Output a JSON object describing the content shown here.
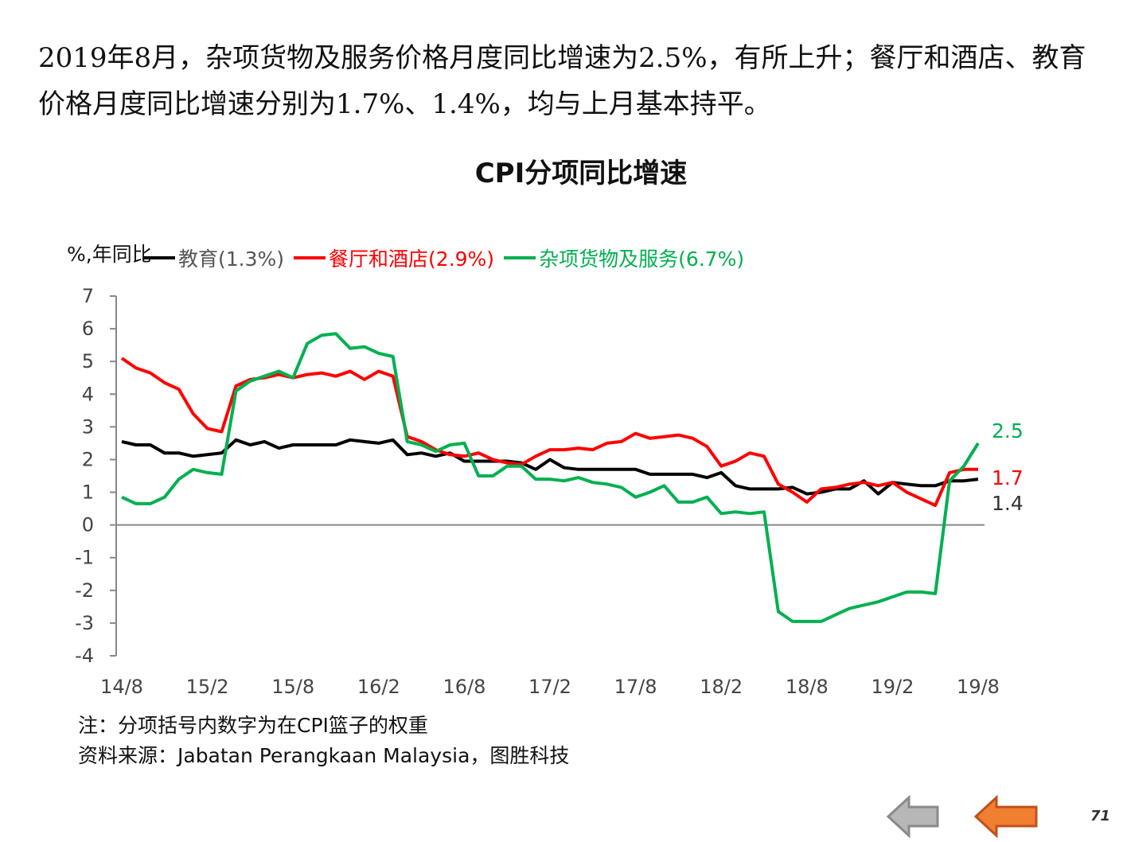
{
  "intro_text": "2019年8月，杂项货物及服务价格月度同比增速为2.5%，有所上升；餐厅和酒店、教育价格月度同比增速分别为1.7%、1.4%，均与上月基本持平。",
  "notes": [
    "注：分项括号内数字为在CPI篮子的权重",
    "资料来源：Jabatan Perangkaan Malaysia，图胜科技"
  ],
  "page_number": "71",
  "nav": {
    "prev_icon": "left-arrow-gray-icon",
    "back_icon": "left-arrow-orange-icon"
  },
  "chart_data": {
    "type": "line",
    "title": "CPI分项同比增速",
    "ylabel": "%,年同比",
    "xlabel": "",
    "ylim": [
      -4,
      7
    ],
    "yticks": [
      "7",
      "6",
      "5",
      "4",
      "3",
      "2",
      "1",
      "0",
      "-1",
      "-2",
      "-3",
      "-4"
    ],
    "xtick_labels": [
      "14/8",
      "15/2",
      "15/8",
      "16/2",
      "16/8",
      "17/2",
      "17/8",
      "18/2",
      "18/8",
      "19/2",
      "19/8"
    ],
    "x_start": "2014-08",
    "x_end": "2019-08",
    "frequency": "monthly",
    "grid": false,
    "legend_position": "top",
    "series": [
      {
        "name": "教育(1.3%)",
        "color": "#000000",
        "end_label": "1.4",
        "end_label_color": "#333333",
        "values": [
          2.55,
          2.45,
          2.45,
          2.2,
          2.2,
          2.1,
          2.15,
          2.2,
          2.6,
          2.45,
          2.55,
          2.35,
          2.45,
          2.45,
          2.45,
          2.45,
          2.6,
          2.55,
          2.5,
          2.6,
          2.15,
          2.2,
          2.1,
          2.2,
          1.95,
          1.95,
          1.95,
          1.95,
          1.9,
          1.7,
          2.0,
          1.75,
          1.7,
          1.7,
          1.7,
          1.7,
          1.7,
          1.55,
          1.55,
          1.55,
          1.55,
          1.45,
          1.6,
          1.2,
          1.1,
          1.1,
          1.1,
          1.15,
          0.95,
          1.0,
          1.1,
          1.1,
          1.35,
          0.95,
          1.3,
          1.25,
          1.2,
          1.2,
          1.35,
          1.35,
          1.4
        ]
      },
      {
        "name": "餐厅和酒店(2.9%)",
        "color": "#ff0000",
        "end_label": "1.7",
        "end_label_color": "#ff0000",
        "values": [
          5.1,
          4.8,
          4.65,
          4.35,
          4.15,
          3.4,
          2.95,
          2.85,
          4.25,
          4.45,
          4.5,
          4.6,
          4.5,
          4.6,
          4.65,
          4.55,
          4.7,
          4.45,
          4.7,
          4.55,
          2.7,
          2.55,
          2.3,
          2.15,
          2.1,
          2.2,
          2.0,
          1.9,
          1.85,
          2.1,
          2.3,
          2.3,
          2.35,
          2.3,
          2.5,
          2.55,
          2.8,
          2.65,
          2.7,
          2.75,
          2.65,
          2.4,
          1.8,
          1.95,
          2.2,
          2.1,
          1.25,
          1.0,
          0.7,
          1.1,
          1.15,
          1.25,
          1.3,
          1.2,
          1.3,
          1.0,
          0.8,
          0.6,
          1.6,
          1.7,
          1.7
        ]
      },
      {
        "name": "杂项货物及服务(6.7%)",
        "color": "#00b050",
        "end_label": "2.5",
        "end_label_color": "#00b050",
        "values": [
          0.85,
          0.65,
          0.65,
          0.85,
          1.4,
          1.7,
          1.6,
          1.55,
          4.1,
          4.4,
          4.55,
          4.7,
          4.5,
          5.55,
          5.8,
          5.85,
          5.4,
          5.45,
          5.25,
          5.15,
          2.55,
          2.45,
          2.25,
          2.45,
          2.5,
          1.5,
          1.5,
          1.8,
          1.8,
          1.4,
          1.4,
          1.35,
          1.45,
          1.3,
          1.25,
          1.15,
          0.85,
          1.0,
          1.2,
          0.7,
          0.7,
          0.85,
          0.35,
          0.4,
          0.35,
          0.4,
          -2.65,
          -2.95,
          -2.95,
          -2.95,
          -2.75,
          -2.55,
          -2.45,
          -2.35,
          -2.2,
          -2.05,
          -2.05,
          -2.1,
          1.35,
          1.8,
          2.5
        ]
      }
    ]
  }
}
